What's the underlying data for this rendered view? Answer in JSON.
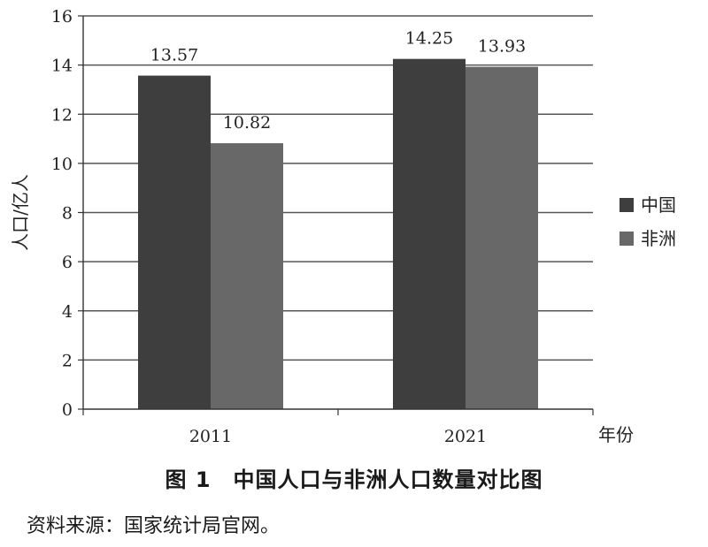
{
  "chart_data": {
    "type": "bar",
    "categories": [
      "2011",
      "2021"
    ],
    "series": [
      {
        "name": "中国",
        "values": [
          13.57,
          14.25
        ],
        "color": "#3e3e3e"
      },
      {
        "name": "非洲",
        "values": [
          10.82,
          13.93
        ],
        "color": "#686868"
      }
    ],
    "value_labels": [
      [
        "13.57",
        "14.25"
      ],
      [
        "10.82",
        "13.93"
      ]
    ],
    "ylabel": "人口/亿人",
    "xlabel": "年份",
    "ylim": [
      0,
      16
    ],
    "yticks": [
      0,
      2,
      4,
      6,
      8,
      10,
      12,
      14,
      16
    ],
    "grid": true,
    "legend_position": "right"
  },
  "caption": "图 1　中国人口与非洲人口数量对比图",
  "source": "资料来源：国家统计局官网。"
}
